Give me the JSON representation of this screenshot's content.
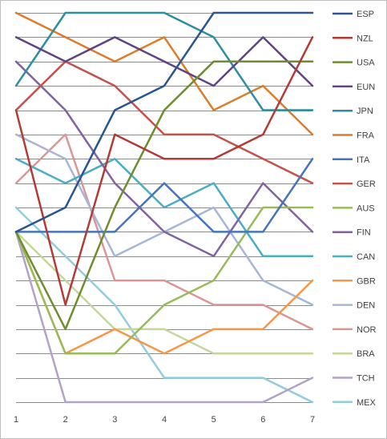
{
  "chart_data": {
    "type": "line",
    "title": "",
    "xlabel": "",
    "ylabel": "",
    "x": [
      1,
      2,
      3,
      4,
      5,
      6,
      7
    ],
    "ylim": [
      1,
      17
    ],
    "y_inverted": true,
    "y_tick_labels_shown": false,
    "grid": "horizontal",
    "legend_position": "right",
    "series": [
      {
        "name": "ESP",
        "color": "#2a5594",
        "values": [
          10,
          9,
          5,
          4,
          1,
          1,
          1
        ]
      },
      {
        "name": "NZL",
        "color": "#b43b35",
        "values": [
          5,
          13,
          6,
          7,
          7,
          6,
          2
        ]
      },
      {
        "name": "USA",
        "color": "#6f8d2e",
        "values": [
          10,
          14,
          9,
          5,
          3,
          3,
          3
        ]
      },
      {
        "name": "EUN",
        "color": "#5f4383",
        "values": [
          2,
          3,
          2,
          3,
          4,
          2,
          4
        ]
      },
      {
        "name": "JPN",
        "color": "#2b8ea3",
        "values": [
          4,
          1,
          1,
          1,
          2,
          5,
          5
        ]
      },
      {
        "name": "FRA",
        "color": "#dd7c2a",
        "values": [
          1,
          2,
          3,
          2,
          5,
          4,
          6
        ]
      },
      {
        "name": "ITA",
        "color": "#4474bd",
        "values": [
          10,
          10,
          10,
          8,
          10,
          10,
          7
        ]
      },
      {
        "name": "GER",
        "color": "#c5504c",
        "values": [
          5,
          3,
          4,
          6,
          6,
          7,
          8
        ]
      },
      {
        "name": "AUS",
        "color": "#9aba58",
        "values": [
          10,
          15,
          15,
          13,
          12,
          9,
          9
        ]
      },
      {
        "name": "FIN",
        "color": "#8064a2",
        "values": [
          3,
          5,
          8,
          10,
          11,
          8,
          10
        ]
      },
      {
        "name": "CAN",
        "color": "#4bacc6",
        "values": [
          7,
          8,
          7,
          9,
          8,
          11,
          11
        ]
      },
      {
        "name": "GBR",
        "color": "#f79646",
        "values": [
          10,
          15,
          14,
          15,
          14,
          14,
          12
        ]
      },
      {
        "name": "DEN",
        "color": "#a5b6d6",
        "values": [
          6,
          7,
          11,
          10,
          9,
          12,
          13
        ]
      },
      {
        "name": "NOR",
        "color": "#d99694",
        "values": [
          8,
          6,
          12,
          12,
          13,
          13,
          14
        ]
      },
      {
        "name": "BRA",
        "color": "#c3d69b",
        "values": [
          10,
          12,
          14,
          14,
          15,
          15,
          15
        ]
      },
      {
        "name": "TCH",
        "color": "#b2a2c7",
        "values": [
          10,
          17,
          17,
          17,
          17,
          17,
          16
        ]
      },
      {
        "name": "MEX",
        "color": "#93cddd",
        "values": [
          9,
          11,
          13,
          16,
          16,
          16,
          17
        ]
      }
    ]
  }
}
